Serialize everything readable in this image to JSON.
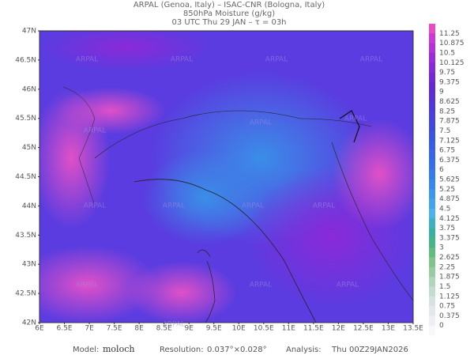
{
  "header": {
    "line1": "ARPAL (Genoa, Italy)  –  ISAC-CNR (Bologna, Italy)",
    "line2": "850hPa Moisture (g/kg)",
    "line3": "03 UTC Thu 29 JAN  –  τ = 03h"
  },
  "map": {
    "lat_labels": [
      "47N",
      "46.5N",
      "46N",
      "45.5N",
      "45N",
      "44.5N",
      "44N",
      "43.5N",
      "43N",
      "42.5N",
      "42N"
    ],
    "lon_labels": [
      "6E",
      "6.5E",
      "7E",
      "7.5E",
      "8E",
      "8.5E",
      "9E",
      "9.5E",
      "10E",
      "10.5E",
      "11E",
      "11.5E",
      "12E",
      "12.5E",
      "13E",
      "13.5E"
    ],
    "watermark": "ARPAL"
  },
  "colorbar": {
    "labels": [
      "11.25",
      "10.875",
      "10.5",
      "10.125",
      "9.75",
      "9.375",
      "9",
      "8.625",
      "8.25",
      "7.875",
      "7.5",
      "7.125",
      "6.75",
      "6.375",
      "6",
      "5.625",
      "5.25",
      "4.875",
      "4.5",
      "4.125",
      "3.75",
      "3.375",
      "3",
      "2.625",
      "2.25",
      "1.875",
      "1.5",
      "1.125",
      "0.75",
      "0.375",
      "0"
    ]
  },
  "footer": {
    "model_label": "Model:",
    "model": "moloch",
    "resolution_label": "Resolution:",
    "resolution": "0.037°×0.028°",
    "analysis_label": "Analysis:",
    "analysis": "Thu 00Z29JAN2026"
  }
}
